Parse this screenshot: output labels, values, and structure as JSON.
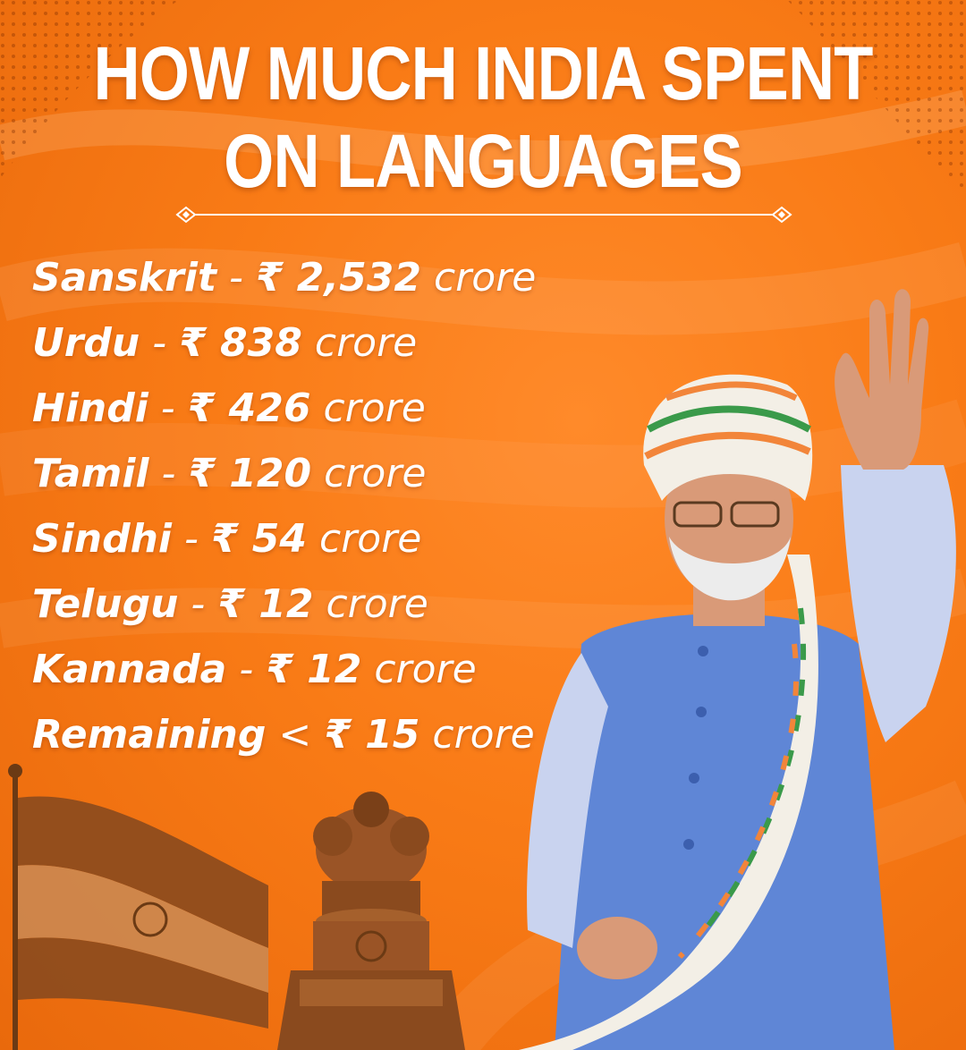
{
  "title": {
    "line1": "HOW MUCH INDIA SPENT",
    "line2": "ON LANGUAGES"
  },
  "rows": [
    {
      "language": "Sanskrit",
      "separator": " - ",
      "amount": "₹ 2,532",
      "unit": " crore"
    },
    {
      "language": "Urdu",
      "separator": " - ",
      "amount": "₹ 838",
      "unit": " crore"
    },
    {
      "language": "Hindi",
      "separator": " - ",
      "amount": "₹ 426",
      "unit": " crore"
    },
    {
      "language": "Tamil",
      "separator": " - ",
      "amount": "₹ 120",
      "unit": " crore"
    },
    {
      "language": "Sindhi",
      "separator": " - ",
      "amount": "₹ 54",
      "unit": " crore"
    },
    {
      "language": "Telugu",
      "separator": " - ",
      "amount": "₹ 12",
      "unit": " crore"
    },
    {
      "language": "Kannada",
      "separator": " - ",
      "amount": "₹ 12",
      "unit": " crore"
    },
    {
      "language": "Remaining",
      "separator": " < ",
      "amount": "₹ 15",
      "unit": " crore"
    }
  ],
  "colors": {
    "background": "#f97b16",
    "text": "#ffffff",
    "sepia": "#8a4a1e",
    "vest": "#5f86d6",
    "shirt": "#c9d3ef",
    "scarf_green": "#3a9a4a",
    "scarf_orange": "#f2853a"
  },
  "icons": [
    "ornament-left-icon",
    "ornament-right-icon",
    "indian-flag",
    "ashoka-lion-capital",
    "man-waving"
  ]
}
